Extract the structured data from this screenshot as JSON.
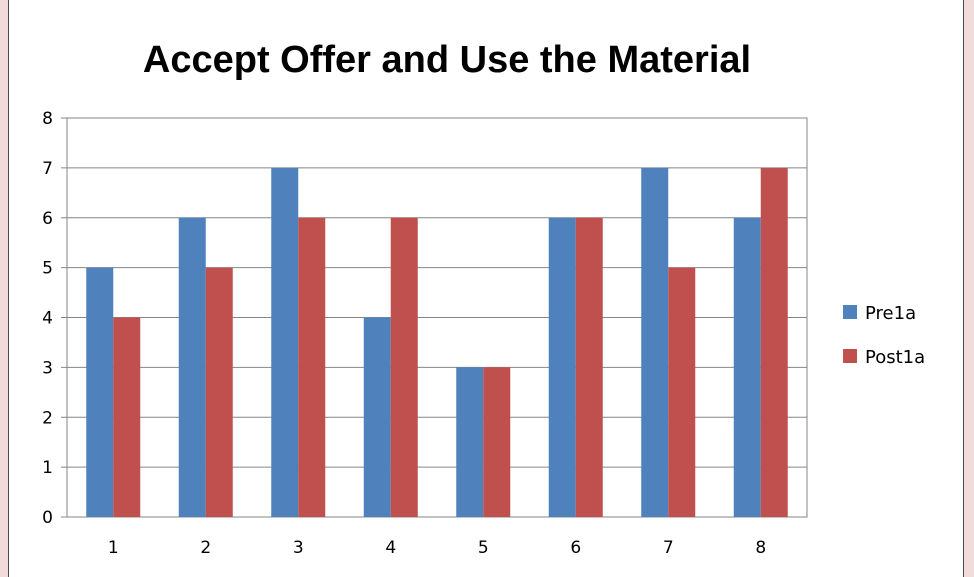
{
  "chart_data": {
    "type": "bar",
    "title": "Accept Offer and Use the Material",
    "xlabel": "",
    "ylabel": "",
    "categories": [
      "1",
      "2",
      "3",
      "4",
      "5",
      "6",
      "7",
      "8"
    ],
    "series": [
      {
        "name": "Pre1a",
        "color": "#4f81bd",
        "values": [
          5,
          6,
          7,
          4,
          3,
          6,
          7,
          6
        ]
      },
      {
        "name": "Post1a",
        "color": "#c0504d",
        "values": [
          4,
          5,
          6,
          6,
          3,
          6,
          5,
          7
        ]
      }
    ],
    "ylim": [
      0,
      8
    ],
    "yticks": [
      "0",
      "1",
      "2",
      "3",
      "4",
      "5",
      "6",
      "7",
      "8"
    ],
    "grid": true,
    "legend_position": "right"
  }
}
